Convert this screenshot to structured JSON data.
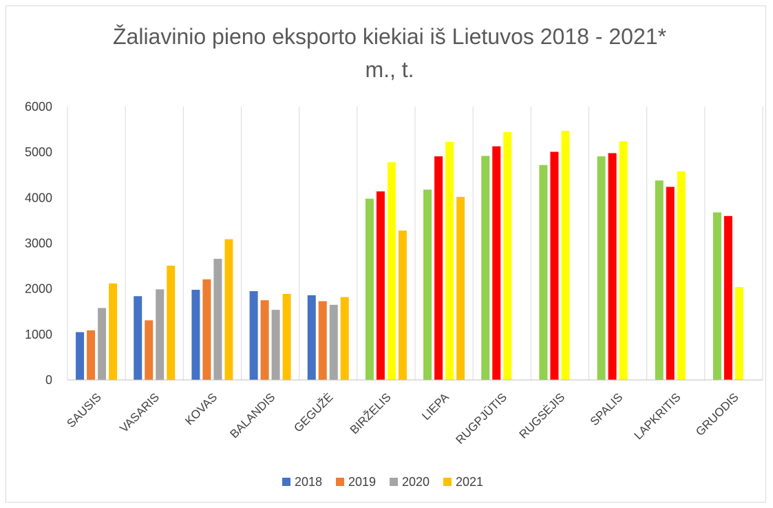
{
  "chart_data": {
    "type": "bar",
    "title_line1": "Žaliavinio pieno eksporto kiekiai iš Lietuvos 2018 - 2021*",
    "title_line2": "m., t.",
    "categories": [
      "SAUSIS",
      "VASARIS",
      "KOVAS",
      "BALANDIS",
      "GEGUŽĖ",
      "BIRŽELIS",
      "LIEPA",
      "RUGPJŪTIS",
      "RUGSĖJIS",
      "SPALIS",
      "LAPKRITIS",
      "GRUODIS"
    ],
    "yticks": [
      "0",
      "1000",
      "2000",
      "3000",
      "4000",
      "5000",
      "6000"
    ],
    "ylim": [
      0,
      6000
    ],
    "grid": "vertical",
    "legend_position": "bottom",
    "series": [
      {
        "name": "2018",
        "color": "#4472c4",
        "values": [
          1050,
          1840,
          1980,
          1950,
          1860,
          3980,
          4180,
          4920,
          4720,
          4910,
          4380,
          3680
        ]
      },
      {
        "name": "2019",
        "color": "#ed7d31",
        "values": [
          1090,
          1310,
          2210,
          1750,
          1730,
          4140,
          4910,
          5130,
          5010,
          4980,
          4240,
          3600
        ]
      },
      {
        "name": "2020",
        "color": "#a5a5a5",
        "values": [
          1580,
          1990,
          2660,
          1540,
          1650,
          4780,
          5230,
          5440,
          5470,
          5240,
          4580,
          2040
        ]
      },
      {
        "name": "2021",
        "color": "#ffc000",
        "values": [
          2120,
          2510,
          3090,
          1890,
          1820,
          3280,
          4020,
          null,
          null,
          null,
          null,
          null
        ]
      }
    ],
    "highlight_colors": [
      "#92d050",
      "#ff0000",
      "#ffff00"
    ],
    "highlight_from_category": "BIRŽELIS"
  }
}
